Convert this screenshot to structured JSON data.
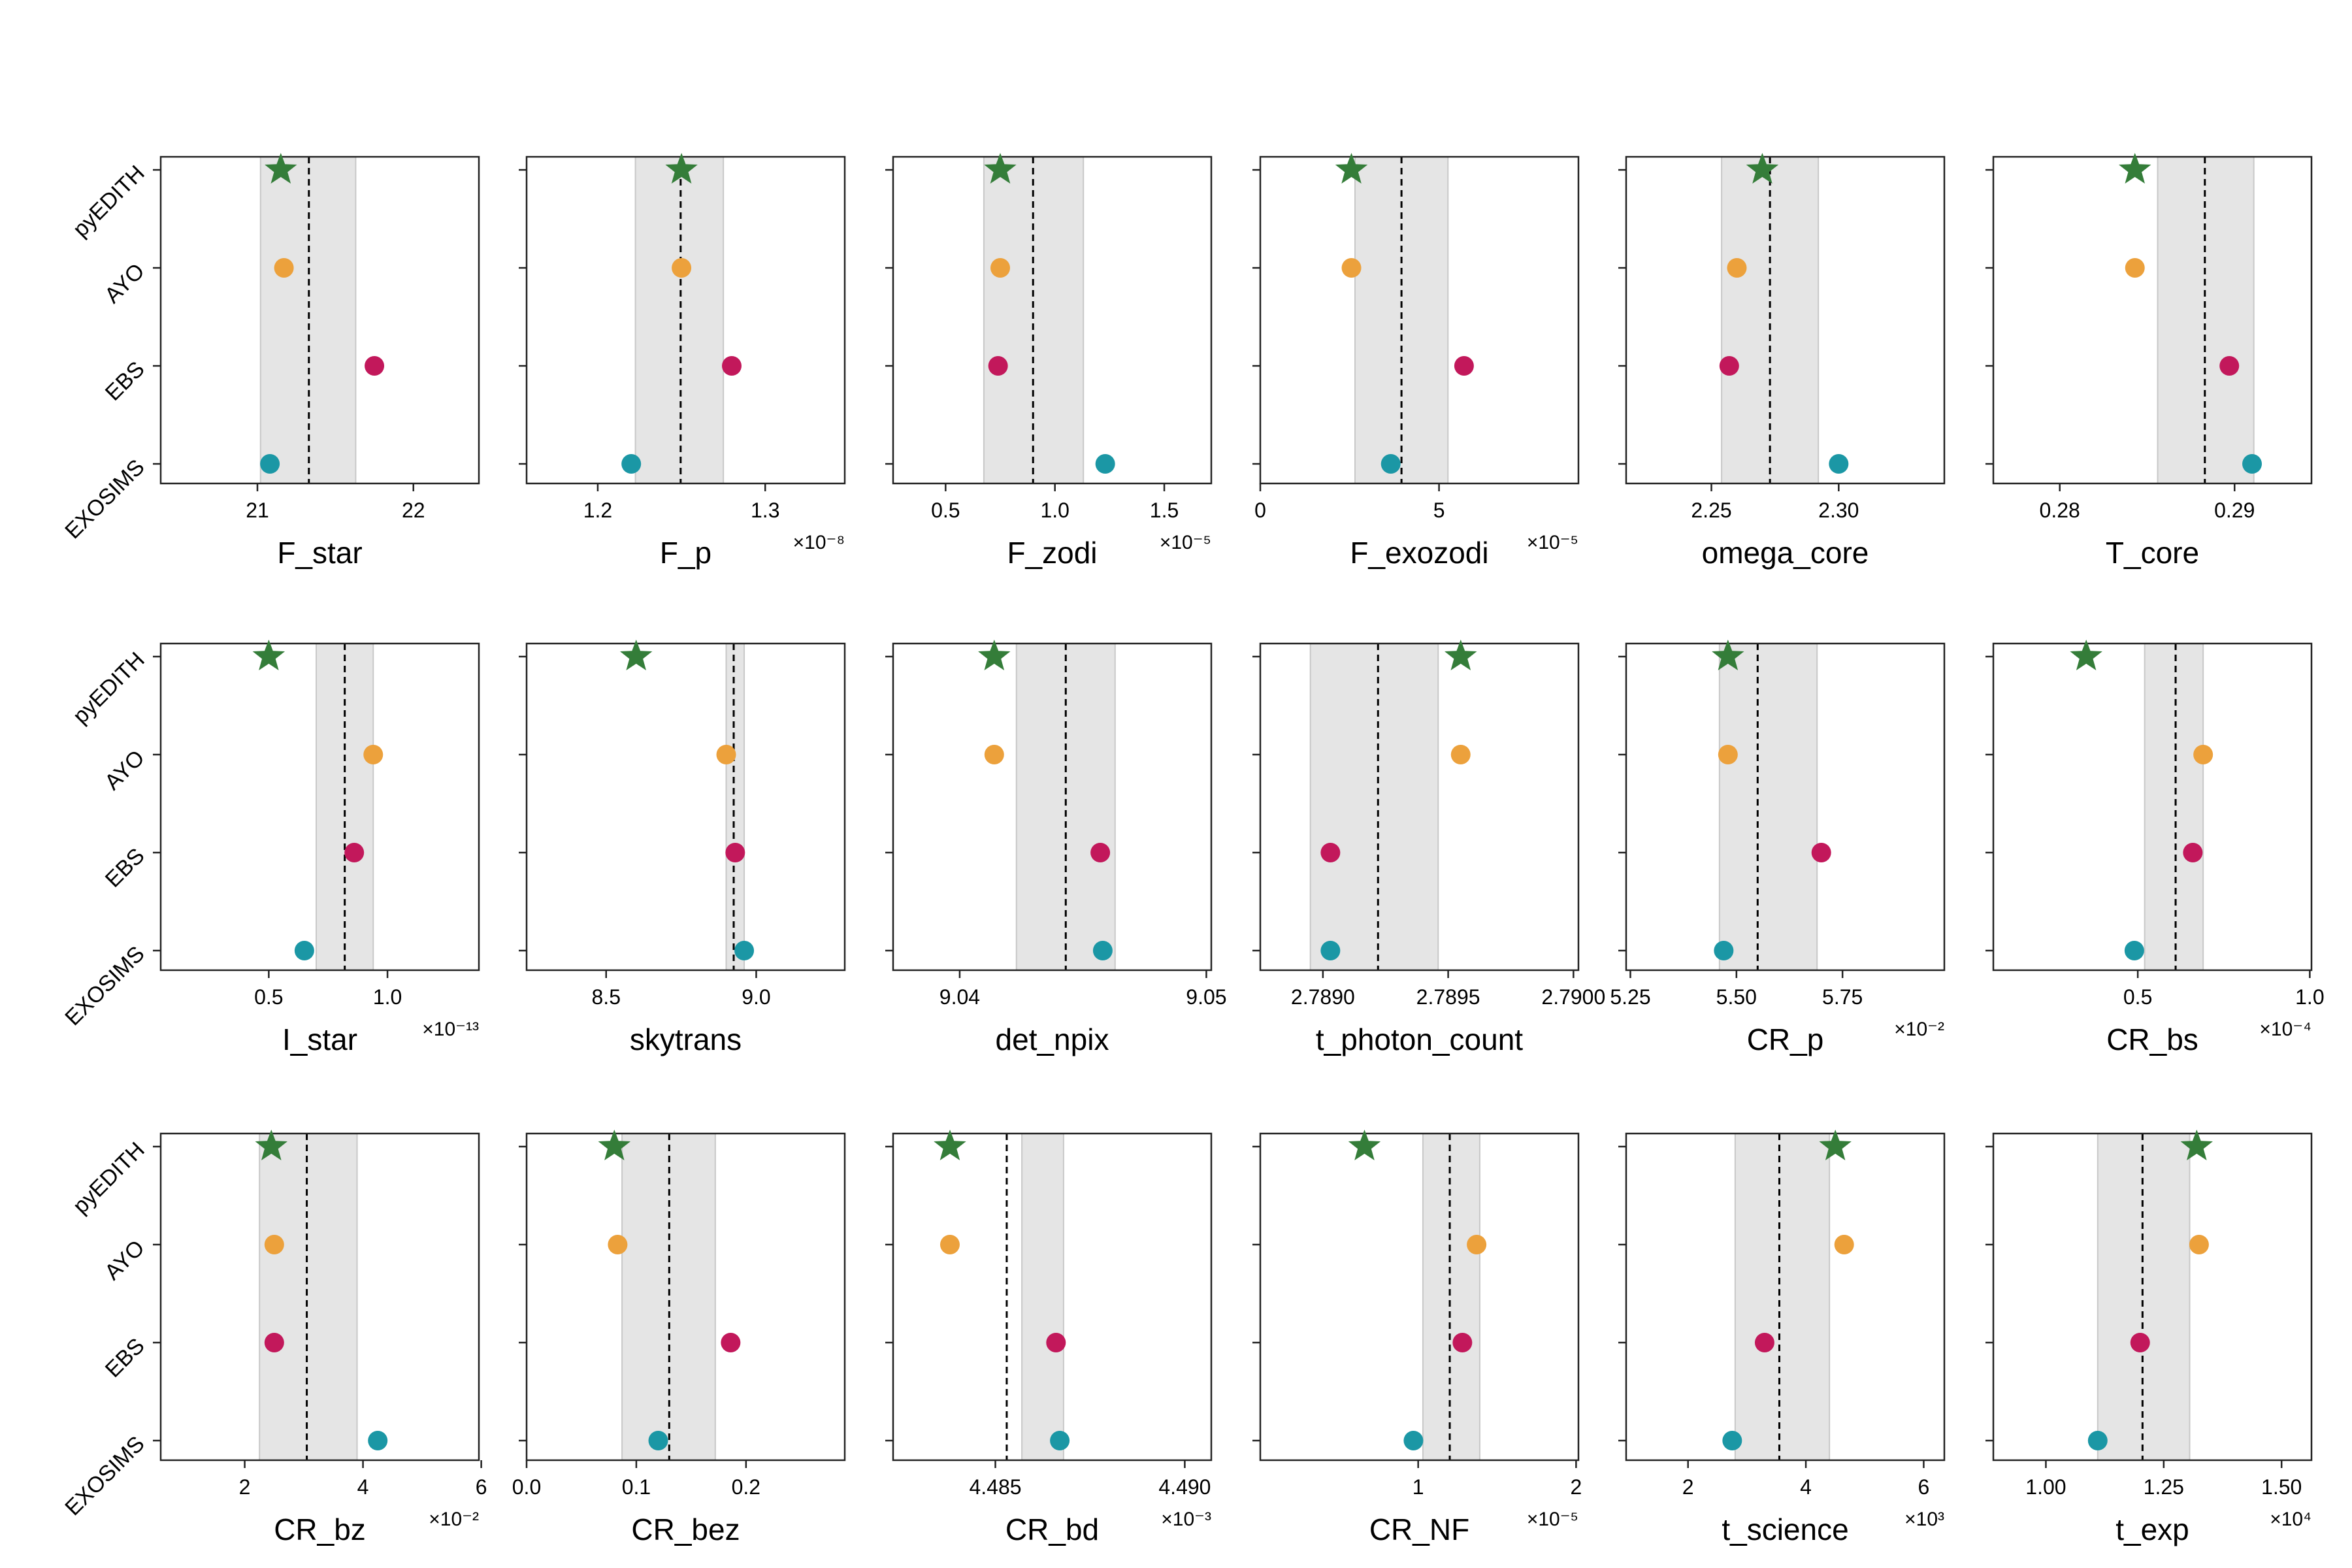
{
  "legend_rows": [
    "pyEDITH",
    "AYO",
    "EBS",
    "EXOSIMS"
  ],
  "colors": {
    "pyEDITH": "#347d39",
    "AYO": "#eca13c",
    "EBS": "#c2185b",
    "EXOSIMS": "#1b97a5",
    "band": "#e5e5e5",
    "band_edge": "#c8c8c8",
    "mean_line": "#000000"
  },
  "markers": {
    "pyEDITH": "star",
    "AYO": "circle",
    "EBS": "circle",
    "EXOSIMS": "circle"
  },
  "chart_data": [
    {
      "type": "scatter",
      "xlabel": "F_star",
      "multiplier": "",
      "xlim": [
        20.38,
        22.42
      ],
      "ticks": [
        21,
        22
      ],
      "tick_labels": [
        "21",
        "22"
      ],
      "values": {
        "pyEDITH": 21.15,
        "AYO": 21.17,
        "EBS": 21.75,
        "EXOSIMS": 21.08
      },
      "mean": 21.33,
      "band": [
        21.02,
        21.63
      ]
    },
    {
      "type": "scatter",
      "xlabel": "F_p",
      "multiplier": "×10⁻⁸",
      "xlim": [
        1.1575,
        1.3475
      ],
      "ticks": [
        1.2,
        1.3
      ],
      "tick_labels": [
        "1.2",
        "1.3"
      ],
      "values": {
        "pyEDITH": 1.25,
        "AYO": 1.25,
        "EBS": 1.28,
        "EXOSIMS": 1.22
      },
      "mean": 1.2495,
      "band": [
        1.2225,
        1.275
      ]
    },
    {
      "type": "scatter",
      "xlabel": "F_zodi",
      "multiplier": "×10⁻⁵",
      "xlim": [
        0.26,
        1.715
      ],
      "ticks": [
        0.5,
        1.0,
        1.5
      ],
      "tick_labels": [
        "0.5",
        "1.0",
        "1.5"
      ],
      "values": {
        "pyEDITH": 0.75,
        "AYO": 0.75,
        "EBS": 0.74,
        "EXOSIMS": 1.23
      },
      "mean": 0.9,
      "band": [
        0.675,
        1.13
      ]
    },
    {
      "type": "scatter",
      "xlabel": "F_exozodi",
      "multiplier": "×10⁻⁵",
      "xlim": [
        0,
        8.9
      ],
      "ticks": [
        0,
        5
      ],
      "tick_labels": [
        "0",
        "5"
      ],
      "values": {
        "pyEDITH": 2.55,
        "AYO": 2.55,
        "EBS": 5.7,
        "EXOSIMS": 3.65
      },
      "mean": 3.95,
      "band": [
        2.65,
        5.25
      ]
    },
    {
      "type": "scatter",
      "xlabel": "omega_core",
      "multiplier": "",
      "xlim": [
        2.2165,
        2.3415
      ],
      "ticks": [
        2.25,
        2.3
      ],
      "tick_labels": [
        "2.25",
        "2.30"
      ],
      "values": {
        "pyEDITH": 2.27,
        "AYO": 2.26,
        "EBS": 2.257,
        "EXOSIMS": 2.3
      },
      "mean": 2.273,
      "band": [
        2.254,
        2.292
      ]
    },
    {
      "type": "scatter",
      "xlabel": "T_core",
      "multiplier": "",
      "xlim": [
        0.2762,
        0.2944
      ],
      "ticks": [
        0.28,
        0.29
      ],
      "tick_labels": [
        "0.28",
        "0.29"
      ],
      "values": {
        "pyEDITH": 0.2843,
        "AYO": 0.2843,
        "EBS": 0.2897,
        "EXOSIMS": 0.291
      },
      "mean": 0.2883,
      "band": [
        0.2856,
        0.2911
      ]
    },
    {
      "type": "scatter",
      "xlabel": "I_star",
      "multiplier": "×10⁻¹³",
      "xlim": [
        0.045,
        1.385
      ],
      "ticks": [
        0.5,
        1.0
      ],
      "tick_labels": [
        "0.5",
        "1.0"
      ],
      "values": {
        "pyEDITH": 0.5,
        "AYO": 0.94,
        "EBS": 0.86,
        "EXOSIMS": 0.65
      },
      "mean": 0.82,
      "band": [
        0.7,
        0.94
      ]
    },
    {
      "type": "scatter",
      "xlabel": "skytrans",
      "multiplier": "",
      "xlim": [
        8.235,
        9.295
      ],
      "ticks": [
        8.5,
        9.0
      ],
      "tick_labels": [
        "8.5",
        "9.0"
      ],
      "values": {
        "pyEDITH": 8.6,
        "AYO": 8.9,
        "EBS": 8.93,
        "EXOSIMS": 8.96
      },
      "mean": 8.925,
      "band": [
        8.9,
        8.96
      ]
    },
    {
      "type": "scatter",
      "xlabel": "det_npix",
      "multiplier": "",
      "xlim": [
        9.0373,
        9.0502
      ],
      "ticks": [
        9.04,
        9.05
      ],
      "tick_labels": [
        "9.04",
        "9.05"
      ],
      "values": {
        "pyEDITH": 9.0414,
        "AYO": 9.0414,
        "EBS": 9.0457,
        "EXOSIMS": 9.0458
      },
      "mean": 9.0443,
      "band": [
        9.0423,
        9.0463
      ]
    },
    {
      "type": "scatter",
      "xlabel": "t_photon_count",
      "multiplier": "",
      "xlim": [
        2.78875,
        2.79002
      ],
      "ticks": [
        2.789,
        2.7895,
        2.79
      ],
      "tick_labels": [
        "2.7890",
        "2.7895",
        "2.7900"
      ],
      "values": {
        "pyEDITH": 2.78955,
        "AYO": 2.78955,
        "EBS": 2.78903,
        "EXOSIMS": 2.78903
      },
      "mean": 2.78922,
      "band": [
        2.78895,
        2.78946
      ]
    },
    {
      "type": "scatter",
      "xlabel": "CR_p",
      "multiplier": "×10⁻²",
      "xlim": [
        5.24,
        5.99
      ],
      "ticks": [
        5.25,
        5.5,
        5.75
      ],
      "tick_labels": [
        "5.25",
        "5.50",
        "5.75"
      ],
      "values": {
        "pyEDITH": 5.48,
        "AYO": 5.48,
        "EBS": 5.7,
        "EXOSIMS": 5.47
      },
      "mean": 5.55,
      "band": [
        5.46,
        5.69
      ]
    },
    {
      "type": "scatter",
      "xlabel": "CR_bs",
      "multiplier": "×10⁻⁴",
      "xlim": [
        0.08,
        1.005
      ],
      "ticks": [
        0.5,
        1.0
      ],
      "tick_labels": [
        "0.5",
        "1.0"
      ],
      "values": {
        "pyEDITH": 0.35,
        "AYO": 0.69,
        "EBS": 0.66,
        "EXOSIMS": 0.49
      },
      "mean": 0.61,
      "band": [
        0.52,
        0.69
      ]
    },
    {
      "type": "scatter",
      "xlabel": "CR_bz",
      "multiplier": "×10⁻²",
      "xlim": [
        0.58,
        5.96
      ],
      "ticks": [
        2,
        4,
        6
      ],
      "tick_labels": [
        "2",
        "4",
        "6"
      ],
      "values": {
        "pyEDITH": 2.45,
        "AYO": 2.5,
        "EBS": 2.5,
        "EXOSIMS": 4.25
      },
      "mean": 3.05,
      "band": [
        2.25,
        3.9
      ]
    },
    {
      "type": "scatter",
      "xlabel": "CR_bez",
      "multiplier": "",
      "xlim": [
        0,
        0.29
      ],
      "ticks": [
        0,
        0.1,
        0.2
      ],
      "tick_labels": [
        "0.0",
        "0.1",
        "0.2"
      ],
      "values": {
        "pyEDITH": 0.08,
        "AYO": 0.083,
        "EBS": 0.186,
        "EXOSIMS": 0.12
      },
      "mean": 0.13,
      "band": [
        0.087,
        0.172
      ]
    },
    {
      "type": "scatter",
      "xlabel": "CR_bd",
      "multiplier": "×10⁻³",
      "xlim": [
        4.4823,
        4.4907
      ],
      "ticks": [
        4.485,
        4.49
      ],
      "tick_labels": [
        "4.485",
        "4.490"
      ],
      "values": {
        "pyEDITH": 4.4838,
        "AYO": 4.4838,
        "EBS": 4.4866,
        "EXOSIMS": 4.4867
      },
      "mean": 4.4853,
      "band": [
        4.4857,
        4.4868
      ]
    },
    {
      "type": "scatter",
      "xlabel": "CR_NF",
      "multiplier": "×10⁻⁵",
      "xlim": [
        0.0,
        2.015
      ],
      "ticks": [
        1,
        2
      ],
      "tick_labels": [
        "1",
        "2"
      ],
      "values": {
        "pyEDITH": 0.66,
        "AYO": 1.37,
        "EBS": 1.28,
        "EXOSIMS": 0.97
      },
      "mean": 1.2,
      "band": [
        1.03,
        1.39
      ]
    },
    {
      "type": "scatter",
      "xlabel": "t_science",
      "multiplier": "×10³",
      "xlim": [
        0.95,
        6.35
      ],
      "ticks": [
        2,
        4,
        6
      ],
      "tick_labels": [
        "2",
        "4",
        "6"
      ],
      "values": {
        "pyEDITH": 4.5,
        "AYO": 4.65,
        "EBS": 3.3,
        "EXOSIMS": 2.75
      },
      "mean": 3.55,
      "band": [
        2.8,
        4.4
      ]
    },
    {
      "type": "scatter",
      "xlabel": "t_exp",
      "multiplier": "×10⁴",
      "xlim": [
        0.8885,
        1.5635
      ],
      "ticks": [
        1.0,
        1.25,
        1.5
      ],
      "tick_labels": [
        "1.00",
        "1.25",
        "1.50"
      ],
      "values": {
        "pyEDITH": 1.32,
        "AYO": 1.325,
        "EBS": 1.2,
        "EXOSIMS": 1.11
      },
      "mean": 1.205,
      "band": [
        1.11,
        1.305
      ]
    }
  ]
}
